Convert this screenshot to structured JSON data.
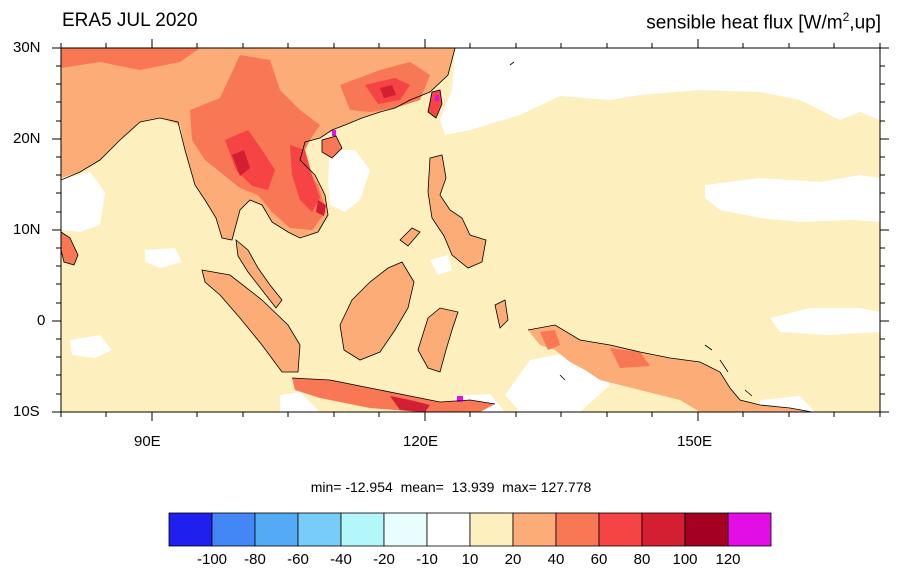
{
  "title_left": "ERA5 JUL 2020",
  "title_right_prefix": "sensible heat flux [W/m",
  "title_right_sup": "2",
  "title_right_suffix": ",up]",
  "lat_labels": [
    "30N",
    "20N",
    "10N",
    "0",
    "10S"
  ],
  "lon_labels": [
    "90E",
    "120E",
    "150E"
  ],
  "stats": {
    "min_label": "min=",
    "min": "-12.954",
    "mean_label": "mean=",
    "mean": "13.939",
    "max_label": "max=",
    "max": "127.778"
  },
  "colorbar": {
    "colors": [
      "#1f1ff0",
      "#4287f5",
      "#55aaf5",
      "#77ccf9",
      "#b4f7fb",
      "#e8fdfd",
      "#ffffff",
      "#fdefbe",
      "#fcac76",
      "#f87755",
      "#f64343",
      "#d41e32",
      "#a30022",
      "#e30de6"
    ],
    "labels": [
      "-100",
      "-80",
      "-60",
      "-40",
      "-20",
      "-10",
      "10",
      "20",
      "40",
      "60",
      "80",
      "100",
      "120"
    ]
  },
  "map_colors": {
    "ocean_base": "#fdefbe",
    "white": "#ffffff",
    "light": "#fcac76",
    "mid": "#f87755",
    "strong": "#f64343",
    "dark": "#d41e32",
    "magenta": "#e30de6"
  }
}
